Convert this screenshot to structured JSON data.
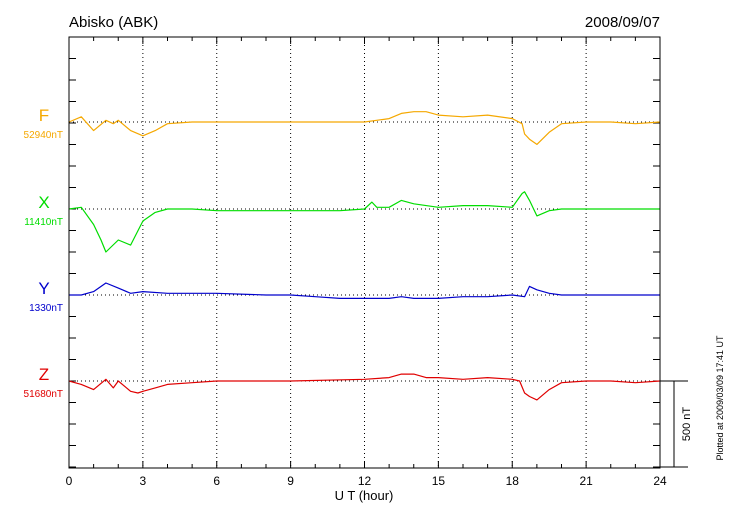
{
  "header": {
    "station": "Abisko (ABK)",
    "date": "2008/09/07"
  },
  "footer": {
    "plotted": "Plotted at 2009/03/09 17:41 UT"
  },
  "chart_data": {
    "type": "line",
    "title": "Abisko (ABK)",
    "xlabel": "U T (hour)",
    "ylabel": "",
    "xlim": [
      0,
      24
    ],
    "x_ticks": [
      "0",
      "3",
      "6",
      "9",
      "12",
      "15",
      "18",
      "21",
      "24"
    ],
    "grid": true,
    "scale_bar": {
      "label": "500 nT",
      "value": 500
    },
    "series": [
      {
        "name": "F",
        "baseline_label": "52940nT",
        "baseline": 52940,
        "color": "#f5a800",
        "x": [
          0,
          0.5,
          1,
          1.5,
          1.8,
          2,
          2.5,
          3,
          3.5,
          4,
          5,
          6,
          8,
          9,
          10,
          12,
          13,
          13.5,
          14,
          14.5,
          15,
          16,
          17,
          18,
          18.4,
          18.5,
          18.7,
          19,
          19.5,
          20,
          21,
          22,
          23,
          24
        ],
        "y": [
          52940,
          52970,
          52890,
          52950,
          52930,
          52950,
          52890,
          52860,
          52890,
          52930,
          52940,
          52940,
          52940,
          52940,
          52940,
          52940,
          52960,
          52990,
          53000,
          53000,
          52980,
          52970,
          52980,
          52960,
          52930,
          52870,
          52840,
          52810,
          52880,
          52930,
          52940,
          52940,
          52930,
          52940
        ]
      },
      {
        "name": "X",
        "baseline_label": "11410nT",
        "baseline": 11410,
        "color": "#00dd00",
        "x": [
          0,
          0.5,
          1,
          1.3,
          1.5,
          2,
          2.5,
          3,
          3.5,
          4,
          5,
          6,
          8,
          9,
          11,
          12,
          12.3,
          12.5,
          13,
          13.5,
          14,
          15,
          16,
          17,
          18,
          18.4,
          18.5,
          18.7,
          19,
          19.5,
          20,
          21,
          22,
          23,
          24
        ],
        "y": [
          11410,
          11420,
          11320,
          11230,
          11160,
          11230,
          11200,
          11340,
          11390,
          11410,
          11410,
          11400,
          11400,
          11400,
          11400,
          11410,
          11450,
          11420,
          11420,
          11460,
          11440,
          11420,
          11430,
          11430,
          11420,
          11500,
          11510,
          11460,
          11370,
          11400,
          11410,
          11410,
          11410,
          11410,
          11410
        ]
      },
      {
        "name": "Y",
        "baseline_label": "1330nT",
        "baseline": 1330,
        "color": "#0000cc",
        "x": [
          0,
          0.5,
          1,
          1.5,
          2,
          2.5,
          3,
          4,
          5,
          6,
          8,
          9,
          10,
          11,
          12,
          13,
          13.5,
          14,
          15,
          16,
          17,
          18,
          18.5,
          18.7,
          19,
          19.5,
          20,
          21,
          22,
          23,
          24
        ],
        "y": [
          1330,
          1330,
          1350,
          1400,
          1370,
          1340,
          1350,
          1340,
          1340,
          1340,
          1330,
          1330,
          1320,
          1310,
          1310,
          1310,
          1320,
          1310,
          1310,
          1320,
          1320,
          1330,
          1320,
          1380,
          1360,
          1340,
          1330,
          1330,
          1330,
          1330,
          1330
        ]
      },
      {
        "name": "Z",
        "baseline_label": "51680nT",
        "baseline": 51680,
        "color": "#e00000",
        "x": [
          0,
          0.5,
          1,
          1.5,
          1.8,
          2,
          2.5,
          2.8,
          3,
          3.5,
          4,
          5,
          6,
          8,
          9,
          12,
          13,
          13.5,
          14,
          14.5,
          15,
          16,
          17,
          18,
          18.3,
          18.5,
          18.7,
          19,
          19.5,
          20,
          21,
          22,
          23,
          24
        ],
        "y": [
          51680,
          51660,
          51630,
          51690,
          51640,
          51680,
          51620,
          51610,
          51620,
          51640,
          51660,
          51670,
          51680,
          51680,
          51680,
          51690,
          51700,
          51720,
          51720,
          51700,
          51700,
          51690,
          51700,
          51690,
          51680,
          51610,
          51590,
          51570,
          51630,
          51670,
          51680,
          51680,
          51670,
          51680
        ]
      }
    ]
  }
}
